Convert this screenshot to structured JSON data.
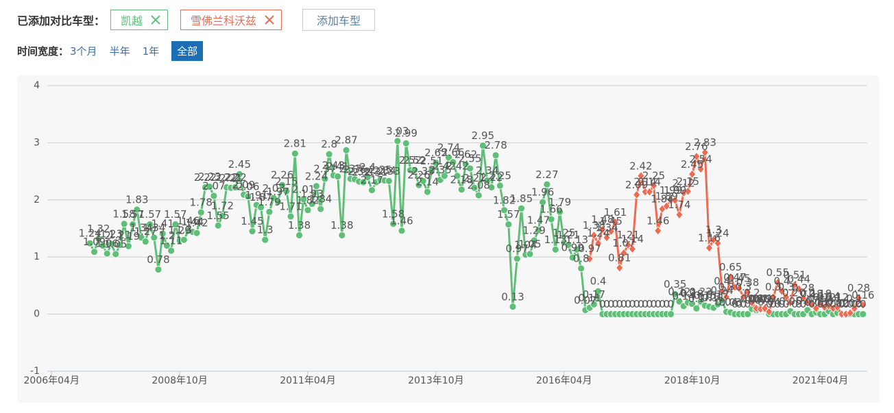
{
  "controls": {
    "compare_label": "已添加对比车型：",
    "add_button": "添加车型",
    "time_label": "时间宽度：",
    "time_options": [
      "3个月",
      "半年",
      "1年",
      "全部"
    ],
    "time_selected": 3
  },
  "chart_data": {
    "type": "line",
    "grid": true,
    "xlim": [
      "2006-03",
      "2022-03"
    ],
    "xticks": [
      {
        "value": "2006-04",
        "label": "2006年04月"
      },
      {
        "value": "2008-10",
        "label": "2008年10月"
      },
      {
        "value": "2011-04",
        "label": "2011年04月"
      },
      {
        "value": "2013-10",
        "label": "2013年10月"
      },
      {
        "value": "2016-04",
        "label": "2016年04月"
      },
      {
        "value": "2018-10",
        "label": "2018年10月"
      },
      {
        "value": "2021-04",
        "label": "2021年04月"
      }
    ],
    "ylim": [
      -1,
      4
    ],
    "yticks": [
      -1,
      0,
      1,
      2,
      3,
      4
    ],
    "x": [
      "2007-01",
      "2007-02",
      "2007-03",
      "2007-04",
      "2007-05",
      "2007-06",
      "2007-07",
      "2007-08",
      "2007-09",
      "2007-10",
      "2007-11",
      "2007-12",
      "2008-01",
      "2008-02",
      "2008-03",
      "2008-04",
      "2008-05",
      "2008-06",
      "2008-07",
      "2008-08",
      "2008-09",
      "2008-10",
      "2008-11",
      "2008-12",
      "2009-01",
      "2009-02",
      "2009-03",
      "2009-04",
      "2009-05",
      "2009-06",
      "2009-07",
      "2009-08",
      "2009-09",
      "2009-10",
      "2009-11",
      "2009-12",
      "2010-01",
      "2010-02",
      "2010-03",
      "2010-04",
      "2010-05",
      "2010-06",
      "2010-07",
      "2010-08",
      "2010-09",
      "2010-10",
      "2010-11",
      "2010-12",
      "2011-01",
      "2011-02",
      "2011-03",
      "2011-04",
      "2011-05",
      "2011-06",
      "2011-07",
      "2011-08",
      "2011-09",
      "2011-10",
      "2011-11",
      "2011-12",
      "2012-01",
      "2012-02",
      "2012-03",
      "2012-04",
      "2012-05",
      "2012-06",
      "2012-07",
      "2012-08",
      "2012-09",
      "2012-10",
      "2012-11",
      "2012-12",
      "2013-01",
      "2013-02",
      "2013-03",
      "2013-04",
      "2013-05",
      "2013-06",
      "2013-07",
      "2013-08",
      "2013-09",
      "2013-10",
      "2013-11",
      "2013-12",
      "2014-01",
      "2014-02",
      "2014-03",
      "2014-04",
      "2014-05",
      "2014-06",
      "2014-07",
      "2014-08",
      "2014-09",
      "2014-10",
      "2014-11",
      "2014-12",
      "2015-01",
      "2015-02",
      "2015-03",
      "2015-04",
      "2015-05",
      "2015-06",
      "2015-07",
      "2015-08",
      "2015-09",
      "2015-10",
      "2015-11",
      "2015-12",
      "2016-01",
      "2016-02",
      "2016-03",
      "2016-04",
      "2016-05",
      "2016-06",
      "2016-07",
      "2016-08",
      "2016-09",
      "2016-10",
      "2016-11",
      "2016-12",
      "2017-01",
      "2017-02",
      "2017-03",
      "2017-04",
      "2017-05",
      "2017-06",
      "2017-07",
      "2017-08",
      "2017-09",
      "2017-10",
      "2017-11",
      "2017-12",
      "2018-01",
      "2018-02",
      "2018-03",
      "2018-04",
      "2018-05",
      "2018-06",
      "2018-07",
      "2018-08",
      "2018-09",
      "2018-10",
      "2018-11",
      "2018-12",
      "2019-01",
      "2019-02",
      "2019-03",
      "2019-04",
      "2019-05",
      "2019-06",
      "2019-07",
      "2019-08",
      "2019-09",
      "2019-10",
      "2019-11",
      "2019-12",
      "2020-01",
      "2020-02",
      "2020-03",
      "2020-04",
      "2020-05",
      "2020-06",
      "2020-07",
      "2020-08",
      "2020-09",
      "2020-10",
      "2020-11",
      "2020-12",
      "2021-01",
      "2021-02",
      "2021-03",
      "2021-04",
      "2021-05",
      "2021-06",
      "2021-07",
      "2021-08",
      "2021-09",
      "2021-10",
      "2021-11",
      "2021-12",
      "2022-01",
      "2022-02"
    ],
    "series": [
      {
        "name": "凯越",
        "color": "#5fbf78",
        "marker": "circle",
        "values": [
          1.24,
          1.09,
          1.32,
          1.2,
          1.06,
          1.23,
          1.05,
          1.21,
          1.58,
          1.19,
          1.57,
          1.83,
          1.34,
          1.27,
          1.57,
          1.34,
          0.78,
          1.41,
          1.2,
          1.11,
          1.57,
          1.29,
          1.3,
          1.46,
          1.44,
          1.42,
          1.78,
          2.22,
          2.23,
          2.07,
          1.55,
          1.72,
          2.22,
          2.21,
          2.22,
          2.45,
          2.09,
          2.06,
          1.45,
          1.91,
          1.87,
          1.3,
          1.79,
          2.03,
          1.97,
          2.26,
          2.15,
          1.71,
          2.81,
          1.38,
          2.01,
          1.82,
          1.93,
          2.24,
          1.84,
          2.37,
          2.8,
          2.43,
          2.41,
          1.38,
          2.87,
          2.37,
          2.36,
          2.32,
          2.31,
          2.4,
          2.17,
          2.31,
          2.35,
          2.34,
          2.33,
          1.58,
          3.03,
          1.46,
          2.99,
          2.52,
          2.52,
          2.26,
          2.33,
          2.14,
          2.51,
          2.65,
          2.35,
          2.42,
          2.74,
          2.66,
          2.42,
          2.18,
          2.62,
          2.55,
          2.21,
          2.08,
          2.95,
          2.34,
          2.22,
          2.78,
          2.25,
          1.82,
          1.57,
          0.13,
          0.97,
          1.85,
          1.04,
          1.05,
          1.29,
          1.47,
          1.96,
          2.27,
          1.66,
          1.13,
          1.79,
          1.25,
          1.21,
          0.99,
          1.13,
          0.8,
          0.07,
          0.11,
          0.17,
          0.4,
          0,
          0,
          0,
          0,
          0,
          0,
          0,
          0,
          0,
          0,
          0,
          0,
          0,
          0,
          0,
          0,
          0,
          0.35,
          0.22,
          0.14,
          0.2,
          0.18,
          0.1,
          0.22,
          0.15,
          0.13,
          0.11,
          0.17,
          0.24,
          0.04,
          0.03,
          0,
          0,
          0,
          0,
          0.09,
          0.07,
          0.1,
          0.09,
          0,
          0,
          0,
          0,
          0,
          0.05,
          0,
          0,
          0,
          0.07,
          0,
          0.03,
          0,
          0,
          0.05,
          0,
          0.02,
          0,
          0,
          0,
          0,
          0,
          0
        ]
      },
      {
        "name": "雪佛兰科沃兹",
        "color": "#ee6b52",
        "marker": "diamond",
        "values": [
          null,
          null,
          null,
          null,
          null,
          null,
          null,
          null,
          null,
          null,
          null,
          null,
          null,
          null,
          null,
          null,
          null,
          null,
          null,
          null,
          null,
          null,
          null,
          null,
          null,
          null,
          null,
          null,
          null,
          null,
          null,
          null,
          null,
          null,
          null,
          null,
          null,
          null,
          null,
          null,
          null,
          null,
          null,
          null,
          null,
          null,
          null,
          null,
          null,
          null,
          null,
          null,
          null,
          null,
          null,
          null,
          null,
          null,
          null,
          null,
          null,
          null,
          null,
          null,
          null,
          null,
          null,
          null,
          null,
          null,
          null,
          null,
          null,
          null,
          null,
          null,
          null,
          null,
          null,
          null,
          null,
          null,
          null,
          null,
          null,
          null,
          null,
          null,
          null,
          null,
          null,
          null,
          null,
          null,
          null,
          null,
          null,
          null,
          null,
          null,
          null,
          null,
          null,
          null,
          null,
          null,
          null,
          null,
          null,
          null,
          null,
          null,
          null,
          null,
          null,
          null,
          null,
          0.97,
          1.38,
          1.24,
          1.48,
          1.34,
          1.45,
          1.61,
          0.81,
          1.07,
          1.21,
          1.14,
          2.09,
          2.42,
          2.14,
          2.14,
          2.25,
          1.46,
          1.84,
          1.89,
          1.99,
          1.99,
          1.74,
          2.12,
          2.15,
          2.45,
          2.76,
          2.54,
          2.83,
          1.16,
          1.3,
          1.24,
          0.4,
          0.3,
          0.65,
          0.47,
          0.45,
          0.3,
          0.38,
          0.2,
          0.1,
          0.09,
          0.1,
          0.04,
          0.3,
          0.55,
          0.4,
          0.3,
          0.2,
          0.51,
          0.44,
          0.28,
          0.2,
          0.18,
          0.1,
          0.18,
          0.12,
          0.14,
          0.1,
          0.12,
          0,
          0,
          0.02,
          0.1,
          0.28,
          0.16
        ]
      }
    ]
  }
}
